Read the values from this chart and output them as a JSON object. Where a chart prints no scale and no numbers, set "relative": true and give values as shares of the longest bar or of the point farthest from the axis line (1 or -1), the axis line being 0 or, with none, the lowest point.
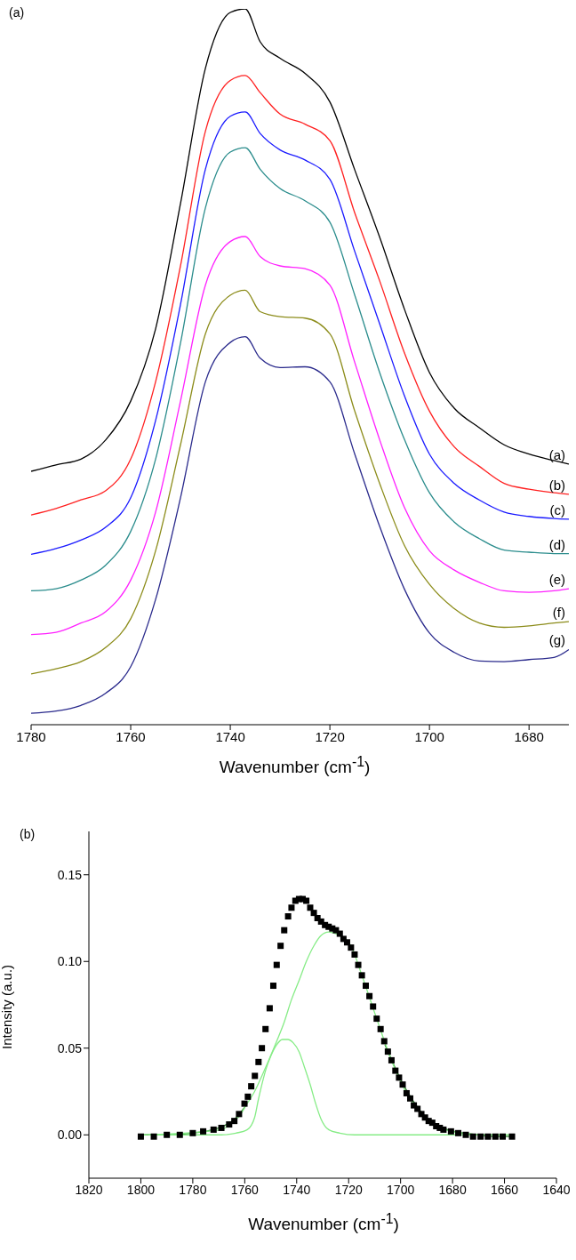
{
  "chart_data": [
    {
      "type": "line",
      "title": "(a)",
      "xlabel": "Wavenumber (cm$^{-1}$)",
      "relative": true,
      "tick_labels": "x",
      "x": [
        1780,
        1775,
        1770,
        1765,
        1760,
        1755,
        1750,
        1745,
        1740,
        1737,
        1734,
        1730,
        1725,
        1720,
        1715,
        1710,
        1705,
        1700,
        1695,
        1690,
        1685,
        1680,
        1675,
        1672
      ],
      "xlim": [
        1780,
        1672
      ],
      "xticks": [
        1780,
        1760,
        1740,
        1720,
        1700,
        1680
      ],
      "series": [
        {
          "name": "(a)",
          "color": "#000000",
          "values": [
            0.354,
            0.363,
            0.371,
            0.398,
            0.452,
            0.553,
            0.728,
            0.917,
            0.995,
            1.0,
            0.954,
            0.931,
            0.91,
            0.87,
            0.775,
            0.681,
            0.58,
            0.492,
            0.442,
            0.415,
            0.391,
            0.378,
            0.369,
            0.364
          ]
        },
        {
          "name": "(b)",
          "color": "#ff2020",
          "values": [
            0.293,
            0.302,
            0.314,
            0.327,
            0.371,
            0.479,
            0.641,
            0.829,
            0.9,
            0.907,
            0.883,
            0.853,
            0.839,
            0.816,
            0.715,
            0.62,
            0.519,
            0.438,
            0.388,
            0.361,
            0.337,
            0.329,
            0.324,
            0.322
          ]
        },
        {
          "name": "(c)",
          "color": "#1a1aff",
          "values": [
            0.238,
            0.246,
            0.258,
            0.276,
            0.317,
            0.425,
            0.587,
            0.776,
            0.85,
            0.856,
            0.826,
            0.803,
            0.789,
            0.762,
            0.661,
            0.56,
            0.459,
            0.378,
            0.337,
            0.314,
            0.297,
            0.291,
            0.288,
            0.287
          ]
        },
        {
          "name": "(d)",
          "color": "#2a8c8c",
          "values": [
            0.187,
            0.19,
            0.202,
            0.223,
            0.27,
            0.371,
            0.533,
            0.722,
            0.8,
            0.806,
            0.776,
            0.749,
            0.732,
            0.702,
            0.6,
            0.492,
            0.398,
            0.324,
            0.283,
            0.26,
            0.244,
            0.241,
            0.239,
            0.239
          ]
        },
        {
          "name": "(e)",
          "color": "#ff20ff",
          "values": [
            0.126,
            0.129,
            0.142,
            0.158,
            0.202,
            0.297,
            0.452,
            0.614,
            0.675,
            0.682,
            0.654,
            0.641,
            0.637,
            0.614,
            0.506,
            0.398,
            0.303,
            0.243,
            0.216,
            0.199,
            0.187,
            0.185,
            0.187,
            0.19
          ]
        },
        {
          "name": "(f)",
          "color": "#8c8c1a",
          "values": [
            0.071,
            0.078,
            0.088,
            0.108,
            0.148,
            0.243,
            0.391,
            0.546,
            0.6,
            0.607,
            0.577,
            0.57,
            0.568,
            0.546,
            0.438,
            0.337,
            0.25,
            0.196,
            0.162,
            0.142,
            0.136,
            0.138,
            0.142,
            0.144
          ]
        },
        {
          "name": "(g)",
          "color": "#2a2a8c",
          "values": [
            0.016,
            0.019,
            0.027,
            0.044,
            0.081,
            0.175,
            0.317,
            0.479,
            0.534,
            0.542,
            0.512,
            0.499,
            0.5,
            0.479,
            0.378,
            0.277,
            0.189,
            0.128,
            0.101,
            0.089,
            0.088,
            0.091,
            0.094,
            0.105
          ]
        }
      ]
    },
    {
      "type": "scatter",
      "title": "(b)",
      "xlabel": "Wavenumber (cm$^{-1}$)",
      "ylabel": "Intensity (a.u.)",
      "xlim": [
        1820,
        1640
      ],
      "xticks": [
        1820,
        1800,
        1780,
        1760,
        1740,
        1720,
        1700,
        1680,
        1660,
        1640
      ],
      "ylim": [
        -0.025,
        0.175
      ],
      "yticks": [
        {
          "value": 0,
          "label": "0.00"
        },
        {
          "value": 0.05,
          "label": "0.05"
        },
        {
          "value": 0.1,
          "label": "0.10"
        },
        {
          "value": 0.15,
          "label": "0.15"
        }
      ],
      "series": [
        {
          "type": "line",
          "marker": "none",
          "color": "#2e7d2e",
          "x": [
            1800,
            1790,
            1780,
            1770,
            1764,
            1760,
            1733,
            1706,
            1700,
            1694,
            1688,
            1682,
            1676,
            1670,
            1664,
            1657
          ],
          "values": [
            0.0,
            0.0,
            0.001,
            0.004,
            0.009,
            0.016,
            null,
            0.052,
            0.032,
            0.017,
            0.007,
            0.003,
            0.001,
            0.0,
            -0.001,
            -0.001
          ]
        },
        {
          "type": "line",
          "marker": "none",
          "color": "#86ec86",
          "x": [
            1797,
            1769,
            1763.4,
            1759,
            1756.2,
            1754.8,
            1753.4,
            1752,
            1749.8,
            1747.7,
            1745.5,
            1743.4,
            1741.3,
            1739.1,
            1737,
            1734.8,
            1732.7,
            1730.6,
            1727.7,
            1723.4,
            1717.7,
            1660
          ],
          "values": [
            0.0,
            0.0,
            0.001,
            0.003,
            0.01,
            0.02,
            0.029,
            0.037,
            0.046,
            0.052,
            0.055,
            0.055,
            0.053,
            0.048,
            0.039,
            0.029,
            0.018,
            0.009,
            0.003,
            0.001,
            0.0,
            0.0
          ]
        },
        {
          "type": "line",
          "marker": "none",
          "color": "#86ec86",
          "x": [
            1800,
            1783.3,
            1774.8,
            1769,
            1764.8,
            1762,
            1759.1,
            1756.2,
            1753.4,
            1750.5,
            1747.7,
            1744.8,
            1742,
            1739.1,
            1736.3,
            1733.4,
            1730.6,
            1727.7,
            1724.9,
            1722,
            1719.1,
            1714.9,
            1709.2,
            1703.5,
            1697.7,
            1692,
            1686.3,
            1680.6,
            1674.9,
            1669.2,
            1657
          ],
          "values": [
            0.0,
            0.001,
            0.002,
            0.003,
            0.007,
            0.011,
            0.018,
            0.025,
            0.034,
            0.044,
            0.054,
            0.065,
            0.078,
            0.089,
            0.1,
            0.109,
            0.115,
            0.117,
            0.116,
            0.114,
            0.109,
            0.092,
            0.067,
            0.043,
            0.024,
            0.012,
            0.005,
            0.002,
            0.001,
            0.0,
            0.0
          ]
        },
        {
          "marker": "square",
          "color": "#000000",
          "x": [
            1800,
            1795,
            1790,
            1785,
            1780,
            1776,
            1772,
            1769,
            1766,
            1764,
            1762.2,
            1760.1,
            1758.8,
            1757.5,
            1756.1,
            1754.7,
            1753.4,
            1752,
            1750.4,
            1749,
            1747.7,
            1746.2,
            1744.8,
            1743.3,
            1742,
            1740.5,
            1739.1,
            1737.7,
            1736.3,
            1734.8,
            1733.4,
            1732,
            1730.6,
            1729.1,
            1727.7,
            1726.3,
            1724.9,
            1723.4,
            1722,
            1720.6,
            1719.1,
            1717.7,
            1716.3,
            1714.9,
            1713.4,
            1712,
            1710.6,
            1709.2,
            1707.7,
            1706.3,
            1704.9,
            1703.5,
            1702,
            1700.6,
            1699.2,
            1697.7,
            1696.3,
            1694.9,
            1693.5,
            1692,
            1690.6,
            1689.2,
            1687.8,
            1686.3,
            1684.9,
            1683.5,
            1680.6,
            1677.8,
            1674.9,
            1672.1,
            1669.2,
            1666.4,
            1663.5,
            1660.7,
            1657.1
          ],
          "values": [
            -0.001,
            -0.001,
            0.0,
            0.0,
            0.001,
            0.002,
            0.003,
            0.004,
            0.006,
            0.008,
            0.012,
            0.018,
            0.022,
            0.028,
            0.034,
            0.042,
            0.05,
            0.061,
            0.073,
            0.086,
            0.098,
            0.109,
            0.118,
            0.126,
            0.131,
            0.135,
            0.136,
            0.136,
            0.135,
            0.131,
            0.128,
            0.125,
            0.123,
            0.121,
            0.12,
            0.119,
            0.118,
            0.116,
            0.113,
            0.111,
            0.108,
            0.104,
            0.098,
            0.092,
            0.086,
            0.08,
            0.074,
            0.067,
            0.061,
            0.054,
            0.048,
            0.043,
            0.037,
            0.033,
            0.029,
            0.024,
            0.021,
            0.017,
            0.015,
            0.012,
            0.01,
            0.008,
            0.007,
            0.005,
            0.004,
            0.003,
            0.002,
            0.001,
            0.0,
            -0.001,
            -0.001,
            -0.001,
            -0.001,
            -0.001,
            -0.001
          ]
        }
      ]
    }
  ]
}
